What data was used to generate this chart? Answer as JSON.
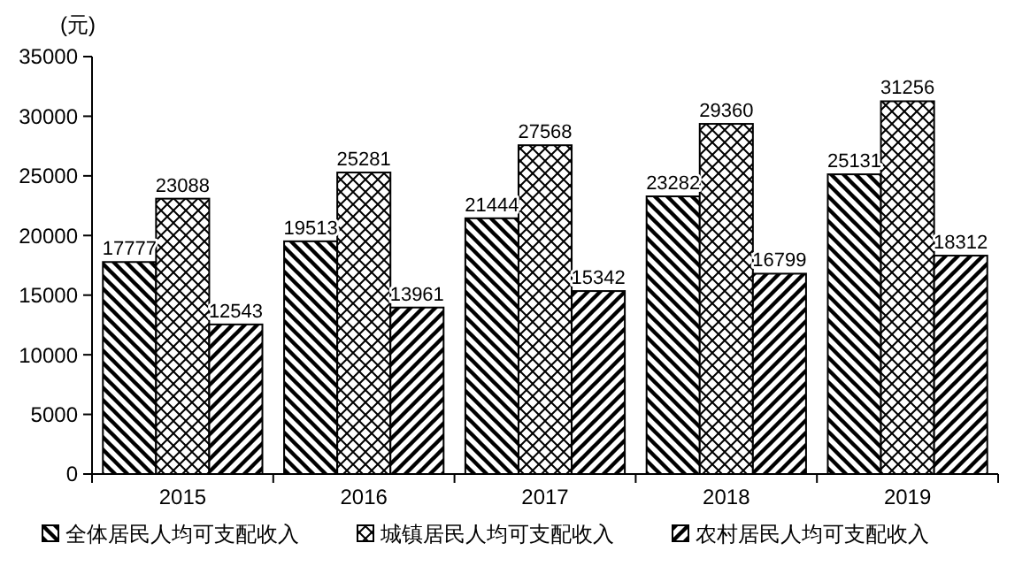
{
  "chart_data": {
    "type": "bar",
    "ylabel": "(元)",
    "categories": [
      "2015",
      "2016",
      "2017",
      "2018",
      "2019"
    ],
    "series": [
      {
        "name": "全体居民人均可支配收入",
        "color": "#000000",
        "values": [
          17777,
          19513,
          21444,
          23282,
          25131
        ]
      },
      {
        "name": "城镇居民人均可支配收入",
        "color": "#000000",
        "values": [
          23088,
          25281,
          27568,
          29360,
          31256
        ]
      },
      {
        "name": "农村居民人均可支配收入",
        "color": "#000000",
        "values": [
          12543,
          13961,
          15342,
          16799,
          18312
        ]
      }
    ],
    "ylim": [
      0,
      35000
    ],
    "yticks": [
      0,
      5000,
      10000,
      15000,
      20000,
      25000,
      30000,
      35000
    ],
    "data_labels": true,
    "grid": false,
    "legend": "bottom"
  }
}
